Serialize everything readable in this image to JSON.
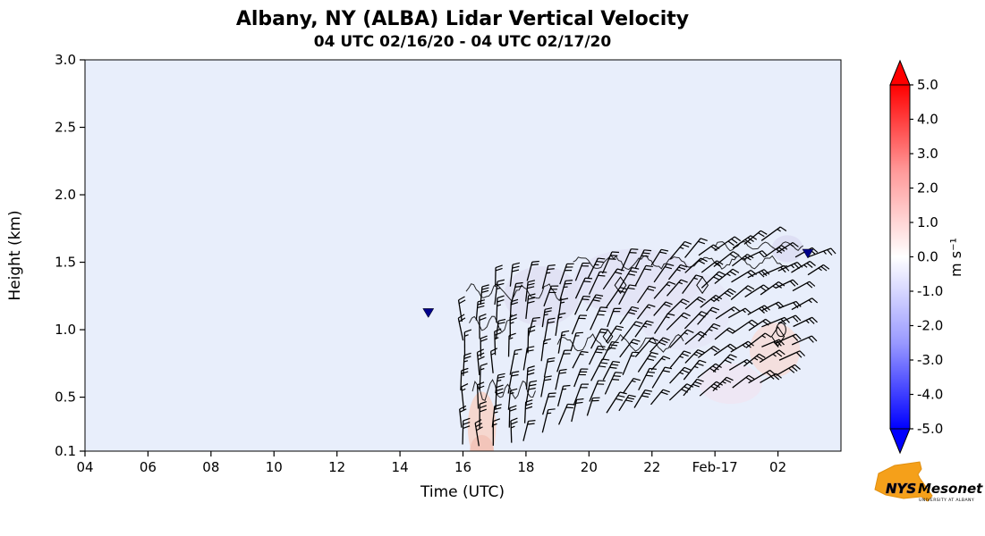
{
  "page": {
    "background": "#ffffff"
  },
  "chart_data": {
    "type": "heatmap",
    "title": "Albany, NY (ALBA) Lidar Vertical Velocity",
    "subtitle": "04 UTC 02/16/20 - 04 UTC 02/17/20",
    "xlabel": "Time (UTC)",
    "ylabel": "Height (km)",
    "x_range_hours": [
      4,
      28
    ],
    "y_range_km": [
      0.1,
      3.0
    ],
    "background_value_color": "#e8eefb",
    "x_ticks": [
      {
        "t": 4,
        "label": "04"
      },
      {
        "t": 6,
        "label": "06"
      },
      {
        "t": 8,
        "label": "08"
      },
      {
        "t": 10,
        "label": "10"
      },
      {
        "t": 12,
        "label": "12"
      },
      {
        "t": 14,
        "label": "14"
      },
      {
        "t": 16,
        "label": "16"
      },
      {
        "t": 18,
        "label": "18"
      },
      {
        "t": 20,
        "label": "20"
      },
      {
        "t": 22,
        "label": "22"
      },
      {
        "t": 24,
        "label": "Feb-17"
      },
      {
        "t": 26,
        "label": "02"
      }
    ],
    "y_ticks": [
      {
        "v": 3.0,
        "label": "3.0"
      },
      {
        "v": 2.5,
        "label": "2.5"
      },
      {
        "v": 2.0,
        "label": "2.0"
      },
      {
        "v": 1.5,
        "label": "1.5"
      },
      {
        "v": 1.0,
        "label": "1.0"
      },
      {
        "v": 0.5,
        "label": "0.5"
      },
      {
        "v": 0.1,
        "label": "0.1"
      }
    ],
    "colorbar": {
      "label": "m s⁻¹",
      "min": -5.0,
      "max": 5.0,
      "color_positive": "#ff0000",
      "color_zero": "#ffffff",
      "color_negative": "#0000ff",
      "ticks": [
        {
          "v": 5.0,
          "label": "5.0"
        },
        {
          "v": 4.0,
          "label": "4.0"
        },
        {
          "v": 3.0,
          "label": "3.0"
        },
        {
          "v": 2.0,
          "label": "2.0"
        },
        {
          "v": 1.0,
          "label": "1.0"
        },
        {
          "v": 0.0,
          "label": "0.0"
        },
        {
          "v": -1.0,
          "label": "-1.0"
        },
        {
          "v": -2.0,
          "label": "-2.0"
        },
        {
          "v": -3.0,
          "label": "-3.0"
        },
        {
          "v": -4.0,
          "label": "-4.0"
        },
        {
          "v": -5.0,
          "label": "-5.0"
        }
      ]
    },
    "barb_spacing_km": 0.13,
    "barb_envelope": [
      {
        "t": 16.0,
        "hmin": 0.15,
        "hmax": 1.12
      },
      {
        "t": 16.5,
        "hmin": 0.15,
        "hmax": 1.3
      },
      {
        "t": 17.0,
        "hmin": 0.15,
        "hmax": 1.32
      },
      {
        "t": 17.5,
        "hmin": 0.15,
        "hmax": 1.35
      },
      {
        "t": 18.0,
        "hmin": 0.18,
        "hmax": 1.35
      },
      {
        "t": 18.5,
        "hmin": 0.25,
        "hmax": 1.4
      },
      {
        "t": 19.0,
        "hmin": 0.3,
        "hmax": 1.43
      },
      {
        "t": 19.5,
        "hmin": 0.32,
        "hmax": 1.45
      },
      {
        "t": 20.0,
        "hmin": 0.35,
        "hmax": 1.48
      },
      {
        "t": 20.5,
        "hmin": 0.38,
        "hmax": 1.5
      },
      {
        "t": 21.0,
        "hmin": 0.4,
        "hmax": 1.52
      },
      {
        "t": 21.5,
        "hmin": 0.42,
        "hmax": 1.55
      },
      {
        "t": 22.0,
        "hmin": 0.45,
        "hmax": 1.57
      },
      {
        "t": 22.5,
        "hmin": 0.47,
        "hmax": 1.58
      },
      {
        "t": 23.0,
        "hmin": 0.5,
        "hmax": 1.6
      },
      {
        "t": 23.5,
        "hmin": 0.52,
        "hmax": 1.62
      },
      {
        "t": 24.0,
        "hmin": 0.55,
        "hmax": 1.63
      },
      {
        "t": 24.5,
        "hmin": 0.57,
        "hmax": 1.65
      },
      {
        "t": 25.0,
        "hmin": 0.6,
        "hmax": 1.66
      },
      {
        "t": 25.5,
        "hmin": 0.62,
        "hmax": 1.68
      },
      {
        "t": 26.0,
        "hmin": 0.65,
        "hmax": 1.68
      },
      {
        "t": 26.5,
        "hmin": 0.9,
        "hmax": 1.65
      },
      {
        "t": 27.0,
        "hmin": 1.4,
        "hmax": 1.65
      }
    ],
    "markers": [
      {
        "t": 14.9,
        "h": 1.13,
        "shape": "triangle-down",
        "color": "#00008b"
      },
      {
        "t": 26.95,
        "h": 1.57,
        "shape": "triangle-down",
        "color": "#00008b"
      }
    ],
    "patches": [
      {
        "t": 16.6,
        "h": 0.28,
        "rt": 0.45,
        "rh": 0.26,
        "color": "#f7d5cc",
        "opacity": 0.95
      },
      {
        "t": 16.6,
        "h": 0.1,
        "rt": 0.38,
        "rh": 0.12,
        "color": "#f2c4b8",
        "opacity": 0.95
      },
      {
        "t": 18.5,
        "h": 1.25,
        "rt": 1.2,
        "rh": 0.22,
        "color": "#dfdff2",
        "opacity": 0.85
      },
      {
        "t": 21.5,
        "h": 1.35,
        "rt": 2.0,
        "rh": 0.25,
        "color": "#e2e2f4",
        "opacity": 0.85
      },
      {
        "t": 23.0,
        "h": 1.15,
        "rt": 1.5,
        "rh": 0.3,
        "color": "#e6e6f6",
        "opacity": 0.7
      },
      {
        "t": 25.9,
        "h": 0.85,
        "rt": 0.8,
        "rh": 0.2,
        "color": "#f6dcd8",
        "opacity": 0.85
      },
      {
        "t": 24.5,
        "h": 0.6,
        "rt": 1.0,
        "rh": 0.15,
        "color": "#f2e2ee",
        "opacity": 0.55
      },
      {
        "t": 26.3,
        "h": 1.6,
        "rt": 0.5,
        "rh": 0.1,
        "color": "#dcdcf2",
        "opacity": 0.85
      }
    ],
    "contours": [
      {
        "type": "wiggle",
        "t0": 16.1,
        "t1": 19.2,
        "h": 1.28,
        "amp": 0.05,
        "period": 0.8
      },
      {
        "type": "wiggle",
        "t0": 19.5,
        "t1": 26.3,
        "h": 1.5,
        "amp": 0.04,
        "period": 1.0
      },
      {
        "type": "wiggle",
        "t0": 19.0,
        "t1": 23.0,
        "h": 0.9,
        "amp": 0.05,
        "period": 0.9
      },
      {
        "type": "wiggle",
        "t0": 24.0,
        "t1": 26.8,
        "h": 1.62,
        "amp": 0.03,
        "period": 0.7
      },
      {
        "type": "wiggle",
        "t0": 16.3,
        "t1": 18.3,
        "h": 0.55,
        "amp": 0.06,
        "period": 0.5
      },
      {
        "type": "wiggle",
        "t0": 16.2,
        "t1": 17.6,
        "h": 1.05,
        "amp": 0.05,
        "period": 0.6
      },
      {
        "type": "diamond",
        "t": 21.0,
        "h": 1.33,
        "rt": 0.18,
        "rh": 0.06
      },
      {
        "type": "diamond",
        "t": 23.6,
        "h": 1.33,
        "rt": 0.18,
        "rh": 0.06
      },
      {
        "type": "diamond",
        "t": 20.6,
        "h": 0.95,
        "rt": 0.15,
        "rh": 0.05
      },
      {
        "type": "diamond",
        "t": 26.0,
        "h": 0.95,
        "rt": 0.2,
        "rh": 0.07
      },
      {
        "type": "circle",
        "t": 26.1,
        "h": 1.0,
        "rt": 0.15,
        "rh": 0.05
      }
    ]
  },
  "logo": {
    "org": "NYS",
    "name": "Mesonet",
    "sub": "UNIVERSITY AT ALBANY",
    "shape_color": "#f5a01a",
    "text_color": "#453a8f"
  }
}
